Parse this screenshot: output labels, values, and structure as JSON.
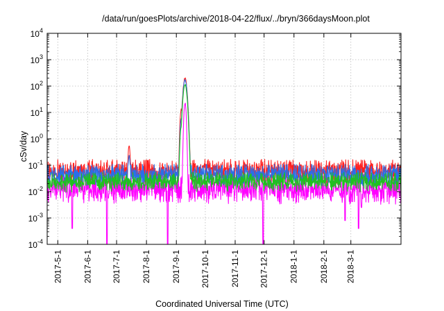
{
  "chart_data": {
    "type": "line",
    "title": "/data/run/goesPlots/archive/2018-04-22/flux/../bryn/366daysMoon.plot",
    "xlabel": "Coordinated Universal Time (UTC)",
    "ylabel": "cSv/day",
    "scale": {
      "y": "log10"
    },
    "grid": true,
    "legend": "none",
    "xlim": [
      "2017-04-20",
      "2018-04-22"
    ],
    "ylim": [
      0.0001,
      10000
    ],
    "x_ticks": [
      "2017-5-1",
      "2017-6-1",
      "2017-7-1",
      "2017-8-1",
      "2017-9-1",
      "2017-10-1",
      "2017-11-1",
      "2017-12-1",
      "2018-1-1",
      "2018-2-1",
      "2018-3-1"
    ],
    "y_ticks": [
      {
        "value": 0.0001,
        "mantissa": "10",
        "exp": "-4"
      },
      {
        "value": 0.001,
        "mantissa": "10",
        "exp": "-3"
      },
      {
        "value": 0.01,
        "mantissa": "10",
        "exp": "-2"
      },
      {
        "value": 0.1,
        "mantissa": "10",
        "exp": "-1"
      },
      {
        "value": 1,
        "mantissa": "10",
        "exp": "0"
      },
      {
        "value": 10,
        "mantissa": "10",
        "exp": "1"
      },
      {
        "value": 100,
        "mantissa": "10",
        "exp": "2"
      },
      {
        "value": 1000,
        "mantissa": "10",
        "exp": "3"
      },
      {
        "value": 10000,
        "mantissa": "10",
        "exp": "4"
      }
    ],
    "series": [
      {
        "color": "#ff2020",
        "base": 0.075,
        "spread": 0.35,
        "events": [
          {
            "date": "2017-07-14",
            "peak": 0.6
          },
          {
            "date": "2017-09-06",
            "peak": 14
          },
          {
            "date": "2017-09-10",
            "peak": 220
          }
        ]
      },
      {
        "color": "#2a6fe8",
        "base": 0.055,
        "spread": 0.3,
        "events": [
          {
            "date": "2017-07-14",
            "peak": 0.25
          },
          {
            "date": "2017-09-06",
            "peak": 6
          },
          {
            "date": "2017-09-10",
            "peak": 180
          }
        ]
      },
      {
        "color": "#20c020",
        "base": 0.03,
        "spread": 0.25,
        "events": [
          {
            "date": "2017-09-06",
            "peak": 3
          },
          {
            "date": "2017-09-10",
            "peak": 120
          }
        ]
      },
      {
        "color": "#ff00ff",
        "base": 0.016,
        "spread": 0.45,
        "events": [
          {
            "date": "2017-09-10",
            "peak": 25
          }
        ],
        "dips": [
          {
            "date": "2017-05-16",
            "value": 0.0004
          },
          {
            "date": "2017-06-21",
            "value": 0.0001
          },
          {
            "date": "2017-08-23",
            "value": 0.0001
          },
          {
            "date": "2017-11-30",
            "value": 0.0001
          },
          {
            "date": "2018-02-23",
            "value": 0.0008
          },
          {
            "date": "2018-03-09",
            "value": 0.0004
          },
          {
            "date": "2018-03-12",
            "value": 0.0025
          }
        ]
      }
    ]
  }
}
